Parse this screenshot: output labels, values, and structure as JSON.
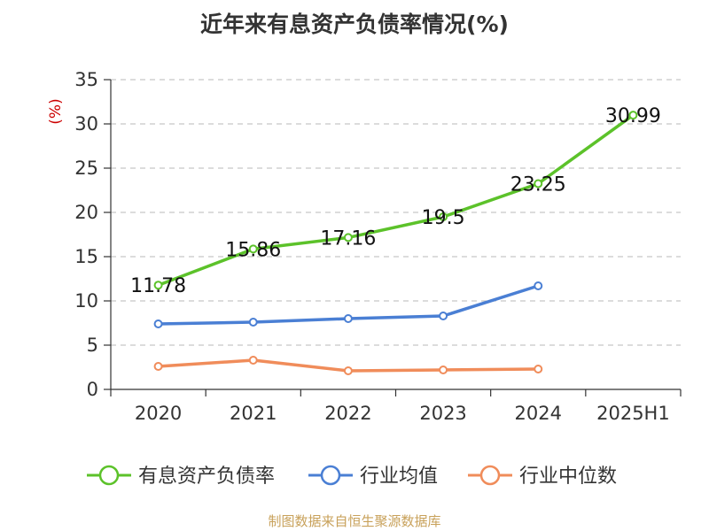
{
  "chart_data": {
    "type": "line",
    "title": "近年来有息资产负债率情况(%)",
    "ylabel": "(%)",
    "categories": [
      "2020",
      "2021",
      "2022",
      "2023",
      "2024",
      "2025H1"
    ],
    "ylim": [
      0,
      35
    ],
    "yticks": [
      0,
      5,
      10,
      15,
      20,
      25,
      30,
      35
    ],
    "grid": true,
    "legend_position": "bottom",
    "series": [
      {
        "name": "有息资产负债率",
        "color": "#5cc22a",
        "values": [
          11.78,
          15.86,
          17.16,
          19.5,
          23.25,
          30.99
        ],
        "labels": [
          "11.78",
          "15.86",
          "17.16",
          "19.5",
          "23.25",
          "30.99"
        ]
      },
      {
        "name": "行业均值",
        "color": "#4a7fd4",
        "values": [
          7.4,
          7.6,
          8.0,
          8.3,
          11.7,
          null
        ]
      },
      {
        "name": "行业中位数",
        "color": "#f08c5a",
        "values": [
          2.6,
          3.3,
          2.1,
          2.2,
          2.3,
          null
        ]
      }
    ]
  },
  "footer": {
    "source": "制图数据来自恒生聚源数据库"
  }
}
